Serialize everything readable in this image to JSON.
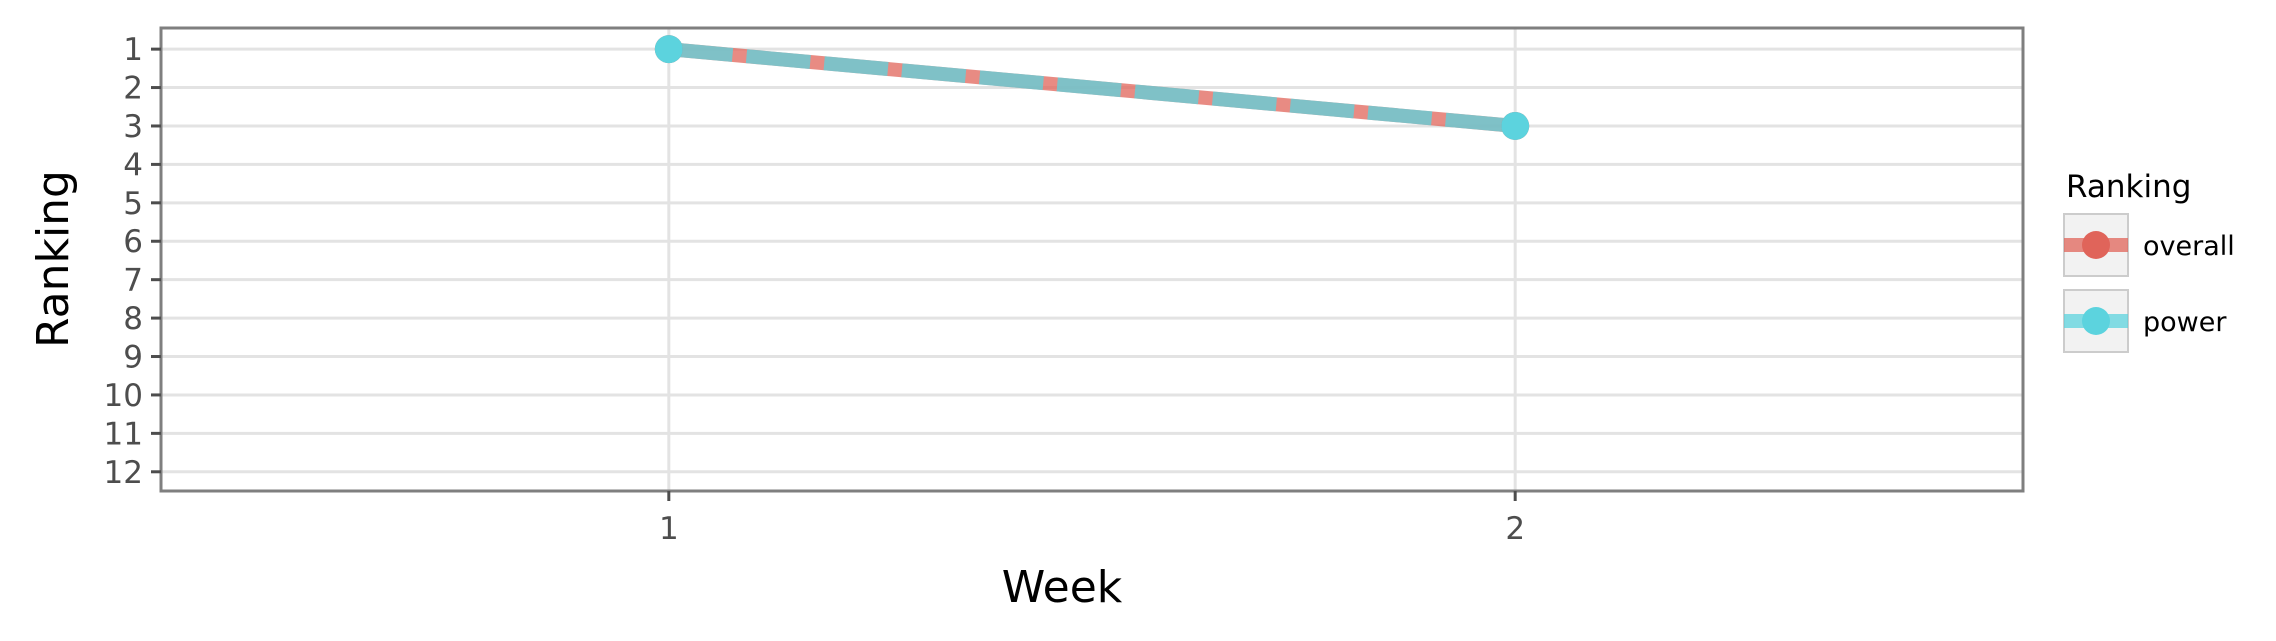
{
  "chart_data": {
    "type": "line",
    "xlabel": "Week",
    "ylabel": "Ranking",
    "x": [
      1,
      2
    ],
    "x_ticks": [
      "1",
      "2"
    ],
    "xlim": [
      0.4,
      2.6
    ],
    "y_ticks": [
      "1",
      "2",
      "3",
      "4",
      "5",
      "6",
      "7",
      "8",
      "9",
      "10",
      "11",
      "12"
    ],
    "ylim": [
      12.5,
      0.45
    ],
    "y_reversed": true,
    "grid": true,
    "legend": {
      "title": "Ranking",
      "position": "right"
    },
    "series": [
      {
        "name": "overall",
        "color": "#e0645a",
        "values": [
          1,
          3
        ],
        "line_style": "solid"
      },
      {
        "name": "power",
        "color": "#5cd3de",
        "values": [
          1,
          3
        ],
        "line_style": "dashed"
      }
    ]
  }
}
